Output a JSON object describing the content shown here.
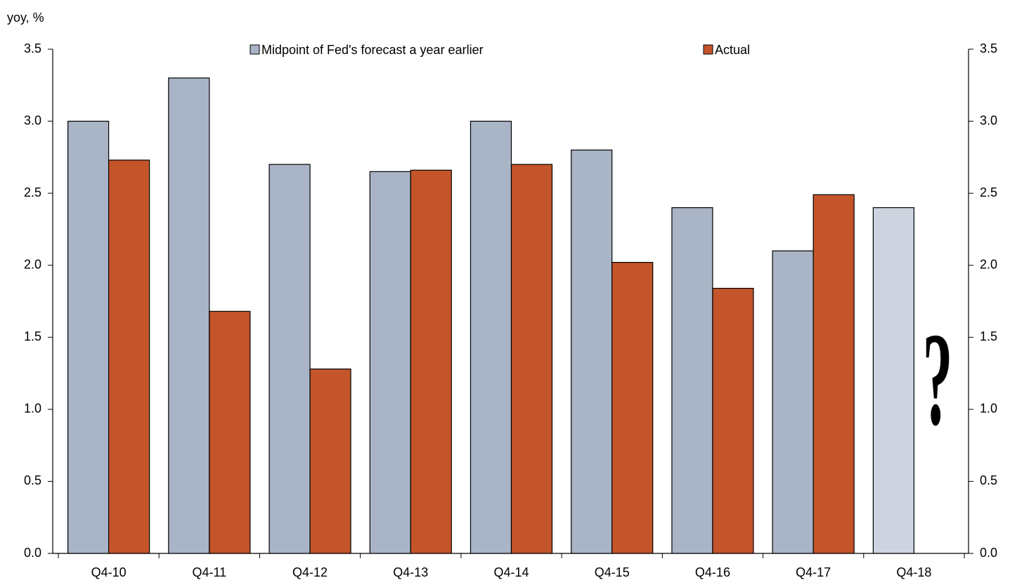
{
  "chart_data": {
    "type": "bar",
    "y_label": "yoy, %",
    "categories": [
      "Q4-10",
      "Q4-11",
      "Q4-12",
      "Q4-13",
      "Q4-14",
      "Q4-15",
      "Q4-16",
      "Q4-17",
      "Q4-18"
    ],
    "series": [
      {
        "name": "Midpoint of Fed's forecast a year earlier",
        "color": "#a9b4c6",
        "colors": [
          "#a9b4c6",
          "#a9b4c6",
          "#a9b4c6",
          "#a9b4c6",
          "#a9b4c6",
          "#a9b4c6",
          "#a9b4c6",
          "#a9b4c6",
          "#cdd4e0"
        ],
        "values": [
          3.0,
          3.3,
          2.7,
          2.65,
          3.0,
          2.8,
          2.4,
          2.1,
          2.4
        ]
      },
      {
        "name": "Actual",
        "color": "#c4552b",
        "values": [
          2.73,
          1.68,
          1.28,
          2.66,
          2.7,
          2.02,
          1.84,
          2.49,
          null
        ]
      }
    ],
    "annotation": "?",
    "ylim": [
      0,
      3.5
    ],
    "yticks": [
      {
        "value": 0,
        "label": "0.0"
      },
      {
        "value": 0.5,
        "label": "0.5"
      },
      {
        "value": 1,
        "label": "1.0"
      },
      {
        "value": 1.5,
        "label": "1.5"
      },
      {
        "value": 2,
        "label": "2.0"
      },
      {
        "value": 2.5,
        "label": "2.5"
      },
      {
        "value": 3,
        "label": "3.0"
      },
      {
        "value": 3.5,
        "label": "3.5"
      }
    ],
    "y2lim": [
      0,
      3.5
    ],
    "y2ticks": [
      {
        "value": 0,
        "label": "0.0"
      },
      {
        "value": 0.5,
        "label": "0.5"
      },
      {
        "value": 1,
        "label": "1.0"
      },
      {
        "value": 1.5,
        "label": "1.5"
      },
      {
        "value": 2,
        "label": "2.0"
      },
      {
        "value": 2.5,
        "label": "2.5"
      },
      {
        "value": 3,
        "label": "3.0"
      },
      {
        "value": 3.5,
        "label": "3.5"
      }
    ],
    "grid": false
  }
}
